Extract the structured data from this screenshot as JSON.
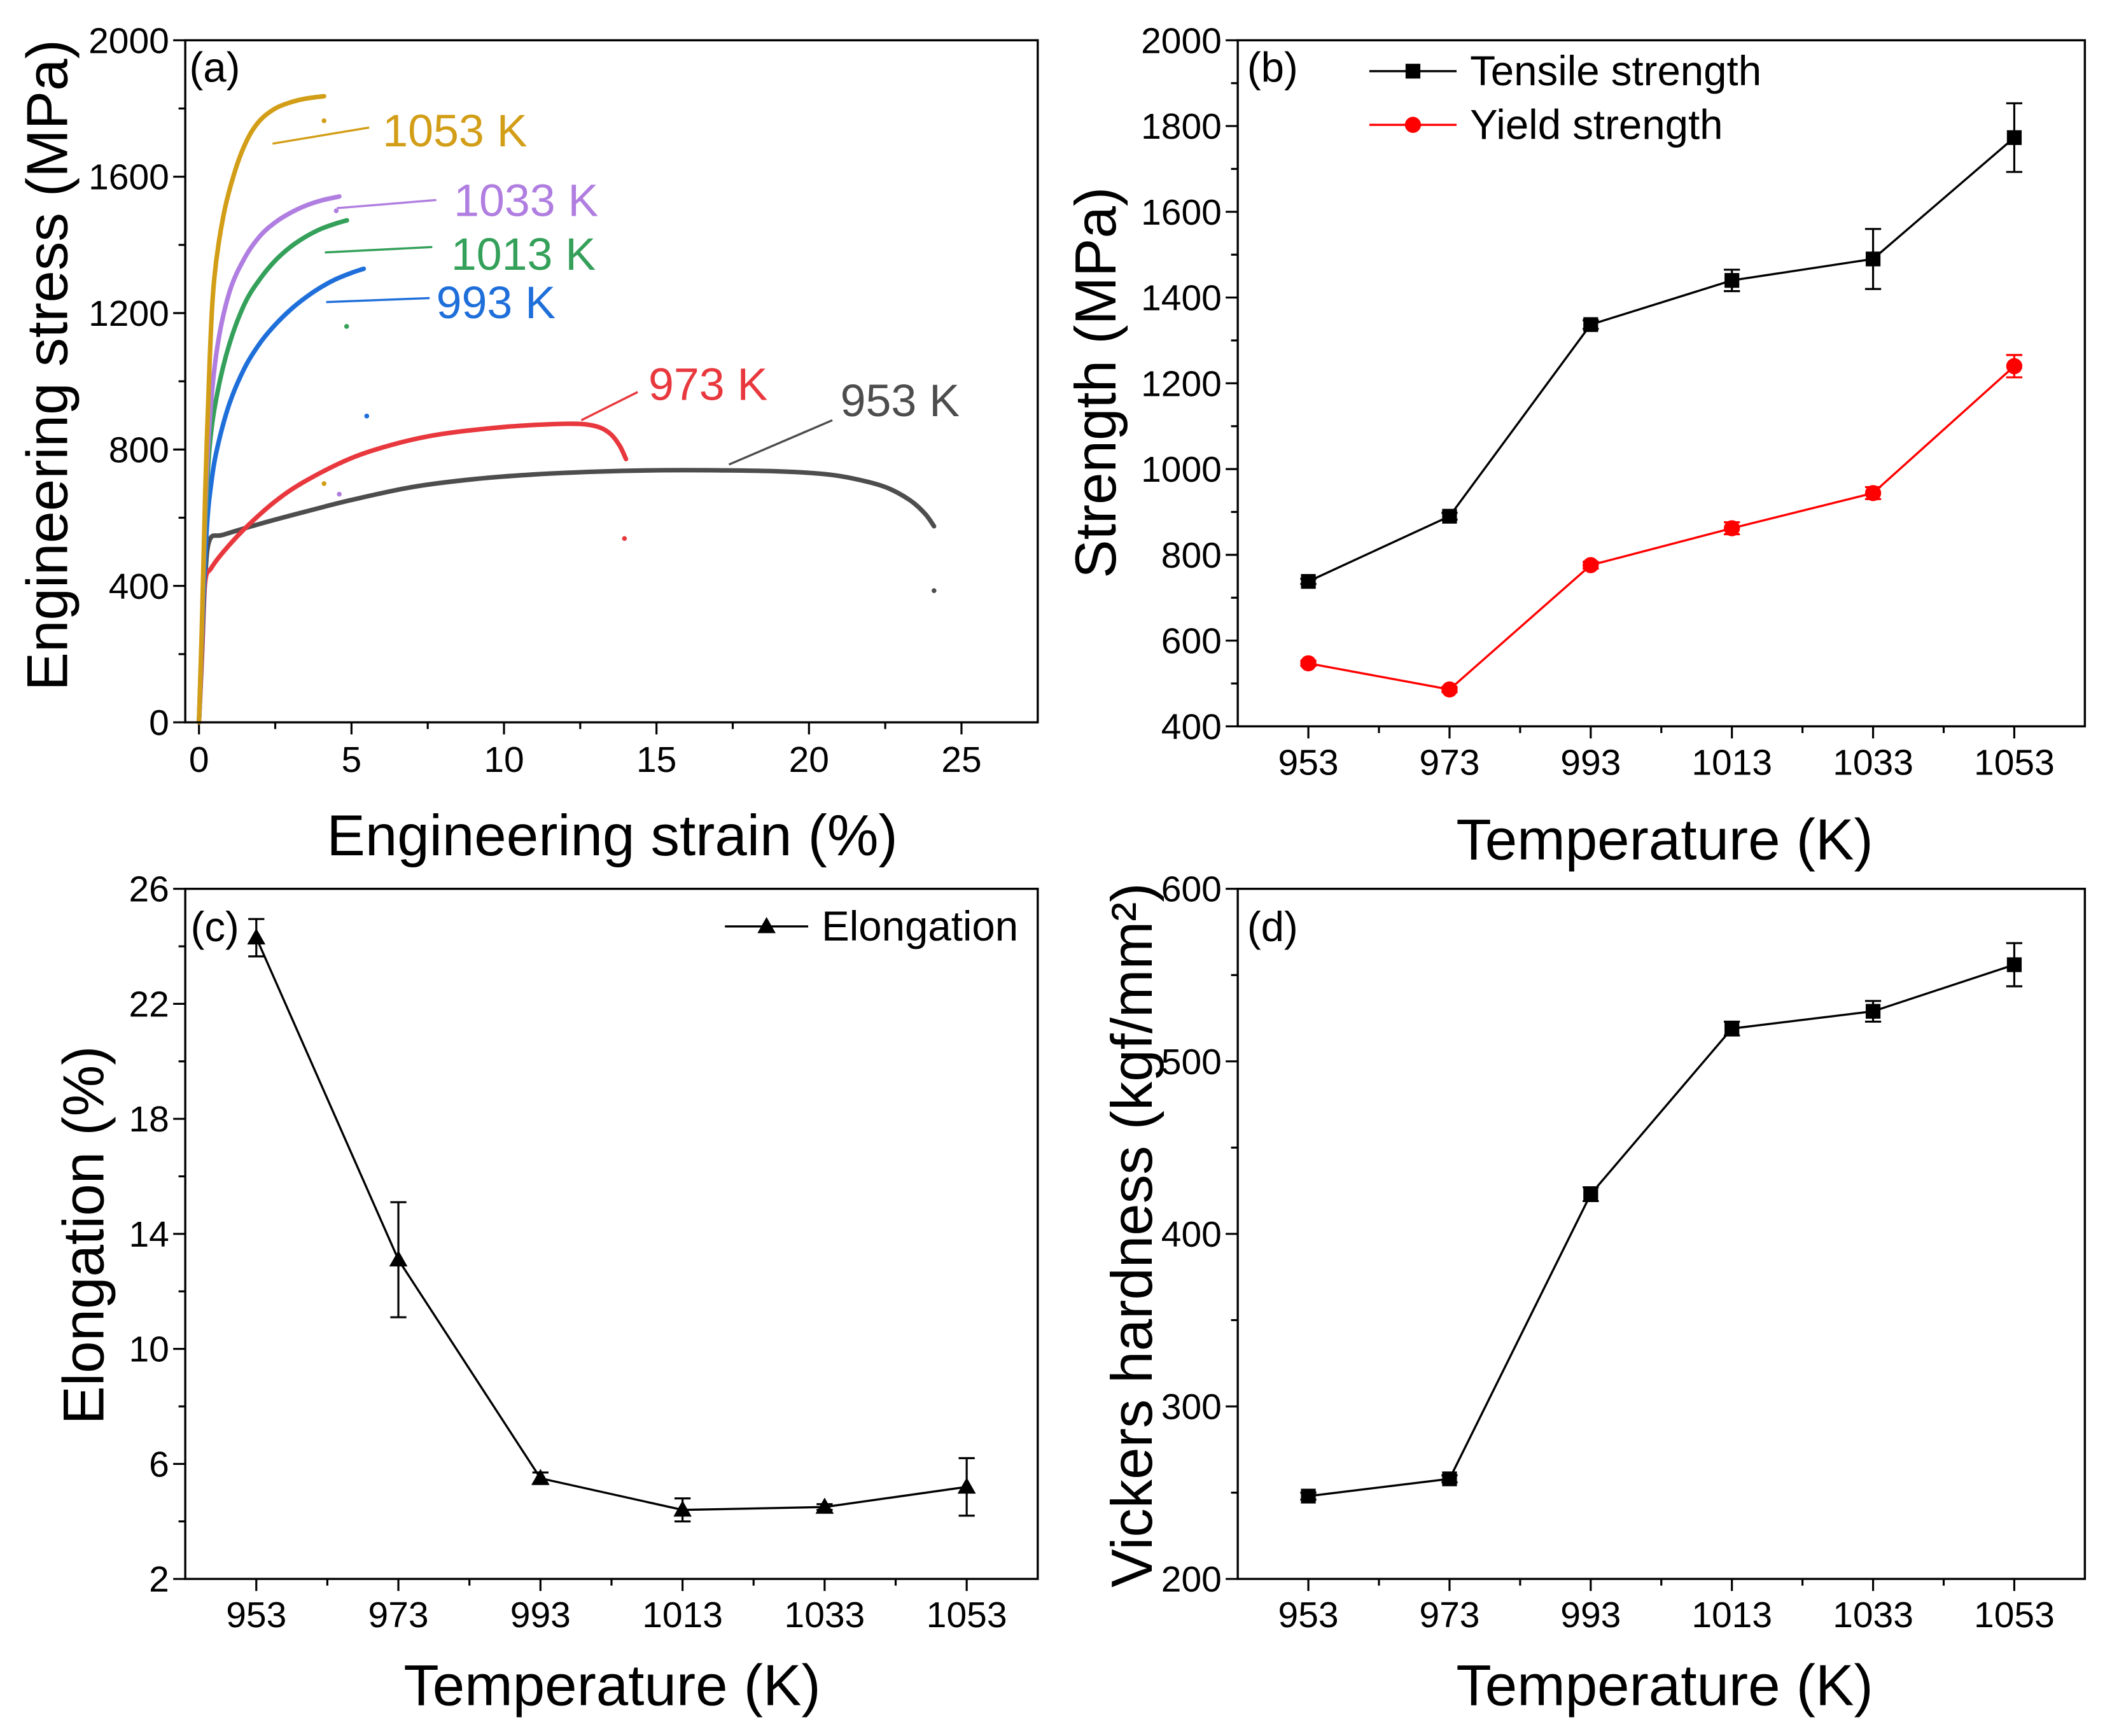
{
  "chart_data": [
    {
      "panel_label": "(a)",
      "type": "line",
      "xlabel": "Engineering strain (%)",
      "ylabel": "Engineering stress (MPa)",
      "xlim": [
        -0.45,
        27.5
      ],
      "ylim": [
        0,
        2000
      ],
      "xticks": [
        0,
        5,
        10,
        15,
        20,
        25
      ],
      "x_minor_step": 2.5,
      "yticks": [
        0,
        400,
        800,
        1200,
        1600,
        2000
      ],
      "y_minor_step": 200,
      "grid": false,
      "series": [
        {
          "name": "953 K",
          "color": "#4d4d4d",
          "points": [
            [
              0,
              0
            ],
            [
              0.1,
              200
            ],
            [
              0.2,
              420
            ],
            [
              0.35,
              535
            ],
            [
              0.8,
              550
            ],
            [
              2,
              582
            ],
            [
              3.5,
              618
            ],
            [
              5,
              652
            ],
            [
              7,
              690
            ],
            [
              9,
              713
            ],
            [
              11,
              727
            ],
            [
              13,
              735
            ],
            [
              15,
              739
            ],
            [
              17,
              739
            ],
            [
              19,
              736
            ],
            [
              20.5,
              728
            ],
            [
              21.5,
              714
            ],
            [
              22.5,
              690
            ],
            [
              23.3,
              652
            ],
            [
              23.8,
              612
            ],
            [
              24.1,
              575
            ]
          ],
          "end_points": [
            [
              24.1,
              386
            ]
          ]
        },
        {
          "name": "973 K",
          "color": "#e8383e",
          "points": [
            [
              0,
              0
            ],
            [
              0.1,
              210
            ],
            [
              0.2,
              410
            ],
            [
              0.4,
              452
            ],
            [
              0.8,
              500
            ],
            [
              1.5,
              568
            ],
            [
              2.5,
              648
            ],
            [
              3.5,
              708
            ],
            [
              5,
              775
            ],
            [
              6.5,
              818
            ],
            [
              8,
              846
            ],
            [
              10,
              866
            ],
            [
              11.5,
              874
            ],
            [
              12.5,
              875
            ],
            [
              13.1,
              866
            ],
            [
              13.5,
              845
            ],
            [
              13.8,
              810
            ],
            [
              14,
              772
            ]
          ],
          "end_points": [
            [
              13.95,
              539
            ]
          ]
        },
        {
          "name": "993 K",
          "color": "#1f6fda",
          "points": [
            [
              0,
              0
            ],
            [
              0.1,
              250
            ],
            [
              0.25,
              560
            ],
            [
              0.4,
              700
            ],
            [
              0.6,
              805
            ],
            [
              1,
              935
            ],
            [
              1.5,
              1040
            ],
            [
              2,
              1112
            ],
            [
              2.5,
              1166
            ],
            [
              3,
              1210
            ],
            [
              3.5,
              1246
            ],
            [
              4,
              1276
            ],
            [
              4.5,
              1300
            ],
            [
              5,
              1318
            ],
            [
              5.4,
              1330
            ]
          ],
          "end_points": [
            [
              5.5,
              898
            ]
          ]
        },
        {
          "name": "1013 K",
          "color": "#34a05a",
          "points": [
            [
              0,
              0
            ],
            [
              0.1,
              275
            ],
            [
              0.2,
              570
            ],
            [
              0.35,
              810
            ],
            [
              0.6,
              965
            ],
            [
              1,
              1110
            ],
            [
              1.5,
              1228
            ],
            [
              2,
              1300
            ],
            [
              2.5,
              1354
            ],
            [
              3,
              1394
            ],
            [
              3.5,
              1424
            ],
            [
              4,
              1447
            ],
            [
              4.5,
              1463
            ],
            [
              4.85,
              1472
            ]
          ],
          "end_points": [
            [
              4.84,
              1161
            ]
          ]
        },
        {
          "name": "1033 K",
          "color": "#b07ee0",
          "points": [
            [
              0,
              0
            ],
            [
              0.1,
              285
            ],
            [
              0.2,
              610
            ],
            [
              0.35,
              885
            ],
            [
              0.6,
              1100
            ],
            [
              1,
              1262
            ],
            [
              1.5,
              1362
            ],
            [
              2,
              1426
            ],
            [
              2.5,
              1466
            ],
            [
              3,
              1494
            ],
            [
              3.5,
              1515
            ],
            [
              4,
              1530
            ],
            [
              4.5,
              1540
            ],
            [
              4.6,
              1542
            ]
          ],
          "end_points": [
            [
              4.5,
              1500
            ],
            [
              4.6,
              669
            ]
          ]
        },
        {
          "name": "1053 K",
          "color": "#d39e17",
          "points": [
            [
              0,
              0
            ],
            [
              0.1,
              300
            ],
            [
              0.2,
              660
            ],
            [
              0.35,
              1060
            ],
            [
              0.5,
              1300
            ],
            [
              0.8,
              1485
            ],
            [
              1.2,
              1622
            ],
            [
              1.6,
              1712
            ],
            [
              2,
              1765
            ],
            [
              2.5,
              1800
            ],
            [
              3,
              1818
            ],
            [
              3.5,
              1829
            ],
            [
              4.1,
              1836
            ]
          ],
          "end_points": [
            [
              4.1,
              1764
            ],
            [
              4.1,
              700
            ]
          ]
        }
      ]
    },
    {
      "panel_label": "(b)",
      "type": "line",
      "xlabel": "Temperature (K)",
      "ylabel": "Strength (MPa)",
      "categories": [
        "953",
        "973",
        "993",
        "1013",
        "1033",
        "1053"
      ],
      "ylim": [
        400,
        2000
      ],
      "yticks": [
        400,
        600,
        800,
        1000,
        1200,
        1400,
        1600,
        1800,
        2000
      ],
      "y_minor_step": 100,
      "legend_position": "top-left",
      "series": [
        {
          "name": "Tensile strength",
          "color": "#000000",
          "marker": "square",
          "values": [
            738,
            890,
            1337,
            1440,
            1490,
            1773
          ],
          "errors": [
            6,
            8,
            10,
            25,
            70,
            80
          ]
        },
        {
          "name": "Yield strength",
          "color": "#ff0000",
          "marker": "circle",
          "values": [
            547,
            486,
            776,
            862,
            944,
            1240
          ],
          "errors": [
            6,
            6,
            8,
            14,
            14,
            26
          ]
        }
      ]
    },
    {
      "panel_label": "(c)",
      "type": "line",
      "xlabel": "Temperature (K)",
      "ylabel": "Elongation (%)",
      "categories": [
        "953",
        "973",
        "993",
        "1013",
        "1033",
        "1053"
      ],
      "ylim": [
        2,
        26
      ],
      "yticks": [
        2,
        6,
        10,
        14,
        18,
        22,
        26
      ],
      "y_minor_step": 2,
      "legend_position": "top-right",
      "series": [
        {
          "name": "Elongation",
          "color": "#000000",
          "marker": "triangle",
          "values": [
            24.3,
            13.1,
            5.5,
            4.4,
            4.5,
            5.2
          ],
          "errors": [
            0.65,
            2.0,
            0.2,
            0.4,
            0.1,
            1.0
          ]
        }
      ]
    },
    {
      "panel_label": "(d)",
      "type": "line",
      "xlabel": "Temperature (K)",
      "ylabel": "Vickers hardness (kgf/mm²)",
      "categories": [
        "953",
        "973",
        "993",
        "1013",
        "1033",
        "1053"
      ],
      "ylim": [
        200,
        600
      ],
      "yticks": [
        200,
        300,
        400,
        500,
        600
      ],
      "y_minor_step": 50,
      "series": [
        {
          "color": "#000000",
          "marker": "square",
          "values": [
            248,
            258,
            423,
            519,
            529,
            556
          ],
          "errors": [
            2,
            2,
            4,
            4,
            6,
            12.5
          ]
        }
      ]
    }
  ]
}
